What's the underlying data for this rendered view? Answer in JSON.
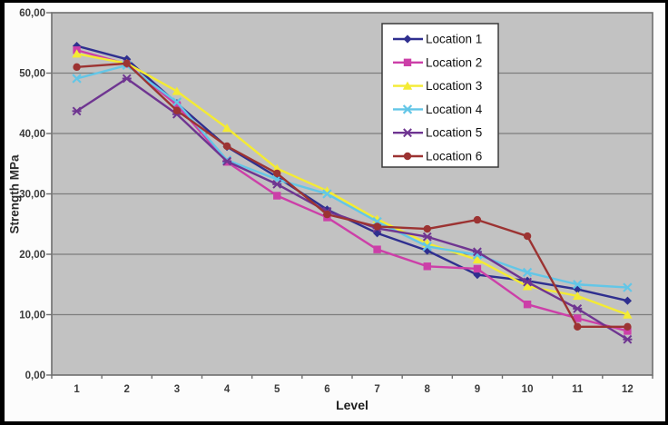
{
  "chart_data": {
    "type": "line",
    "title": "",
    "xlabel": "Level",
    "ylabel": "Strength MPa",
    "x_ticks": [
      "1",
      "2",
      "3",
      "4",
      "5",
      "6",
      "7",
      "8",
      "9",
      "10",
      "11",
      "12"
    ],
    "y_ticks": [
      "0,00",
      "10,00",
      "20,00",
      "30,00",
      "40,00",
      "50,00",
      "60,00"
    ],
    "ylim": [
      0,
      60
    ],
    "y_step": 10,
    "grid": true,
    "legend_position": "top-right-inside",
    "decimal_separator": ",",
    "colors": {
      "page_bg": "#fcfcfc",
      "frame": "#000000",
      "plot_bg": "#c2c2c2",
      "gridline": "#7d7d7d",
      "plot_border": "#6e6e6e",
      "tick_text": "#3b3b3b",
      "legend_bg": "#ffffff",
      "legend_border": "#3a3a3a",
      "legend_text": "#111111"
    },
    "series": [
      {
        "name": "Location 1",
        "color": "#2f2f8f",
        "marker": "diamond",
        "values": [
          54.5,
          52.3,
          45.0,
          37.8,
          32.8,
          27.4,
          23.5,
          20.6,
          16.6,
          15.6,
          14.2,
          12.3
        ]
      },
      {
        "name": "Location 2",
        "color": "#cc3fa8",
        "marker": "square",
        "values": [
          53.8,
          51.5,
          44.7,
          35.3,
          29.7,
          26.1,
          20.8,
          18.0,
          17.6,
          11.7,
          9.4,
          7.3
        ]
      },
      {
        "name": "Location 3",
        "color": "#f4eb33",
        "marker": "triangle",
        "values": [
          53.2,
          51.6,
          47.0,
          40.9,
          34.2,
          30.5,
          25.8,
          21.8,
          19.1,
          14.7,
          13.1,
          10.0
        ]
      },
      {
        "name": "Location 4",
        "color": "#63c6e7",
        "marker": "x",
        "values": [
          49.1,
          51.3,
          45.2,
          35.6,
          32.4,
          30.0,
          25.4,
          21.3,
          19.9,
          17.0,
          15.0,
          14.5
        ]
      },
      {
        "name": "Location 5",
        "color": "#6f3591",
        "marker": "star",
        "values": [
          43.7,
          49.1,
          43.2,
          35.4,
          31.6,
          27.1,
          24.3,
          22.9,
          20.4,
          15.4,
          11.0,
          5.9
        ]
      },
      {
        "name": "Location 6",
        "color": "#9c3332",
        "marker": "circle",
        "values": [
          51.0,
          51.6,
          43.8,
          37.9,
          33.4,
          26.6,
          24.6,
          24.2,
          25.7,
          23.0,
          8.0,
          8.0
        ]
      }
    ]
  }
}
